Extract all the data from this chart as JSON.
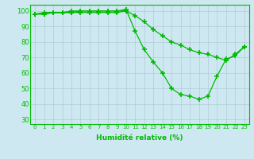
{
  "title": "",
  "xlabel": "Humidité relative (%)",
  "ylabel": "",
  "xlim": [
    -0.5,
    23.5
  ],
  "ylim": [
    27,
    104
  ],
  "yticks": [
    30,
    40,
    50,
    60,
    70,
    80,
    90,
    100
  ],
  "xticks": [
    0,
    1,
    2,
    3,
    4,
    5,
    6,
    7,
    8,
    9,
    10,
    11,
    12,
    13,
    14,
    15,
    16,
    17,
    18,
    19,
    20,
    21,
    22,
    23
  ],
  "bg_color": "#cde8f0",
  "line_color": "#00bb00",
  "line1": {
    "x": [
      0,
      1,
      2,
      3,
      4,
      5,
      6,
      7,
      8,
      9,
      10,
      11,
      12,
      13,
      14,
      15,
      16,
      17,
      18,
      19,
      20,
      21,
      22,
      23
    ],
    "y": [
      98,
      99,
      99,
      99,
      100,
      100,
      100,
      100,
      100,
      100,
      101,
      87,
      75,
      67,
      60,
      50,
      46,
      45,
      43,
      45,
      58,
      69,
      71,
      77
    ]
  },
  "line2": {
    "x": [
      0,
      1,
      2,
      3,
      4,
      5,
      6,
      7,
      8,
      9,
      10,
      11,
      12,
      13,
      14,
      15,
      16,
      17,
      18,
      19,
      20,
      21,
      22,
      23
    ],
    "y": [
      98,
      98,
      99,
      99,
      99,
      100,
      100,
      100,
      100,
      100,
      100,
      97,
      93,
      88,
      84,
      80,
      78,
      75,
      73,
      72,
      70,
      68,
      72,
      77
    ]
  },
  "line3": {
    "x": [
      0,
      1,
      2,
      3,
      4,
      5,
      6,
      7,
      8,
      9,
      10
    ],
    "y": [
      98,
      98,
      99,
      99,
      99,
      99,
      99,
      99,
      99,
      99,
      100
    ]
  }
}
